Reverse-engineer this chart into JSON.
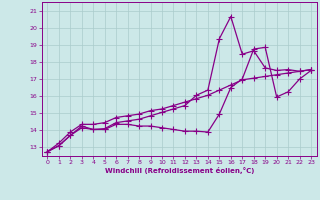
{
  "xlabel": "Windchill (Refroidissement éolien,°C)",
  "xlim": [
    -0.5,
    23.5
  ],
  "ylim": [
    12.5,
    21.5
  ],
  "xticks": [
    0,
    1,
    2,
    3,
    4,
    5,
    6,
    7,
    8,
    9,
    10,
    11,
    12,
    13,
    14,
    15,
    16,
    17,
    18,
    19,
    20,
    21,
    22,
    23
  ],
  "yticks": [
    13,
    14,
    15,
    16,
    17,
    18,
    19,
    20,
    21
  ],
  "bg_color": "#cce8e8",
  "line_color": "#880088",
  "grid_color": "#aacccc",
  "line1_x": [
    0,
    1,
    2,
    3,
    4,
    5,
    6,
    7,
    8,
    9,
    10,
    11,
    12,
    13,
    14,
    15,
    16,
    17,
    18,
    19,
    20,
    21,
    22,
    23
  ],
  "line1_y": [
    12.75,
    13.1,
    13.7,
    14.25,
    14.05,
    14.05,
    14.35,
    14.35,
    14.25,
    14.25,
    14.15,
    14.05,
    13.95,
    13.95,
    13.9,
    14.95,
    16.5,
    17.0,
    18.75,
    18.85,
    15.95,
    16.25,
    17.0,
    17.5
  ],
  "line2_x": [
    0,
    1,
    2,
    3,
    4,
    5,
    6,
    7,
    8,
    9,
    10,
    11,
    12,
    13,
    14,
    15,
    16,
    17,
    18,
    19,
    20,
    21,
    22,
    23
  ],
  "line2_y": [
    12.75,
    13.25,
    13.9,
    14.35,
    14.35,
    14.45,
    14.75,
    14.85,
    14.95,
    15.15,
    15.25,
    15.45,
    15.65,
    15.85,
    16.05,
    16.35,
    16.65,
    16.95,
    17.05,
    17.15,
    17.25,
    17.35,
    17.45,
    17.55
  ],
  "line3_x": [
    0,
    1,
    2,
    3,
    4,
    5,
    6,
    7,
    8,
    9,
    10,
    11,
    12,
    13,
    14,
    15,
    16,
    17,
    18,
    19,
    20,
    21,
    22,
    23
  ],
  "line3_y": [
    12.75,
    13.1,
    13.7,
    14.15,
    14.05,
    14.1,
    14.45,
    14.55,
    14.65,
    14.85,
    15.05,
    15.25,
    15.45,
    16.05,
    16.35,
    19.35,
    20.65,
    18.45,
    18.65,
    17.65,
    17.5,
    17.55,
    17.45,
    17.55
  ],
  "markersize": 2.5,
  "linewidth": 0.9
}
